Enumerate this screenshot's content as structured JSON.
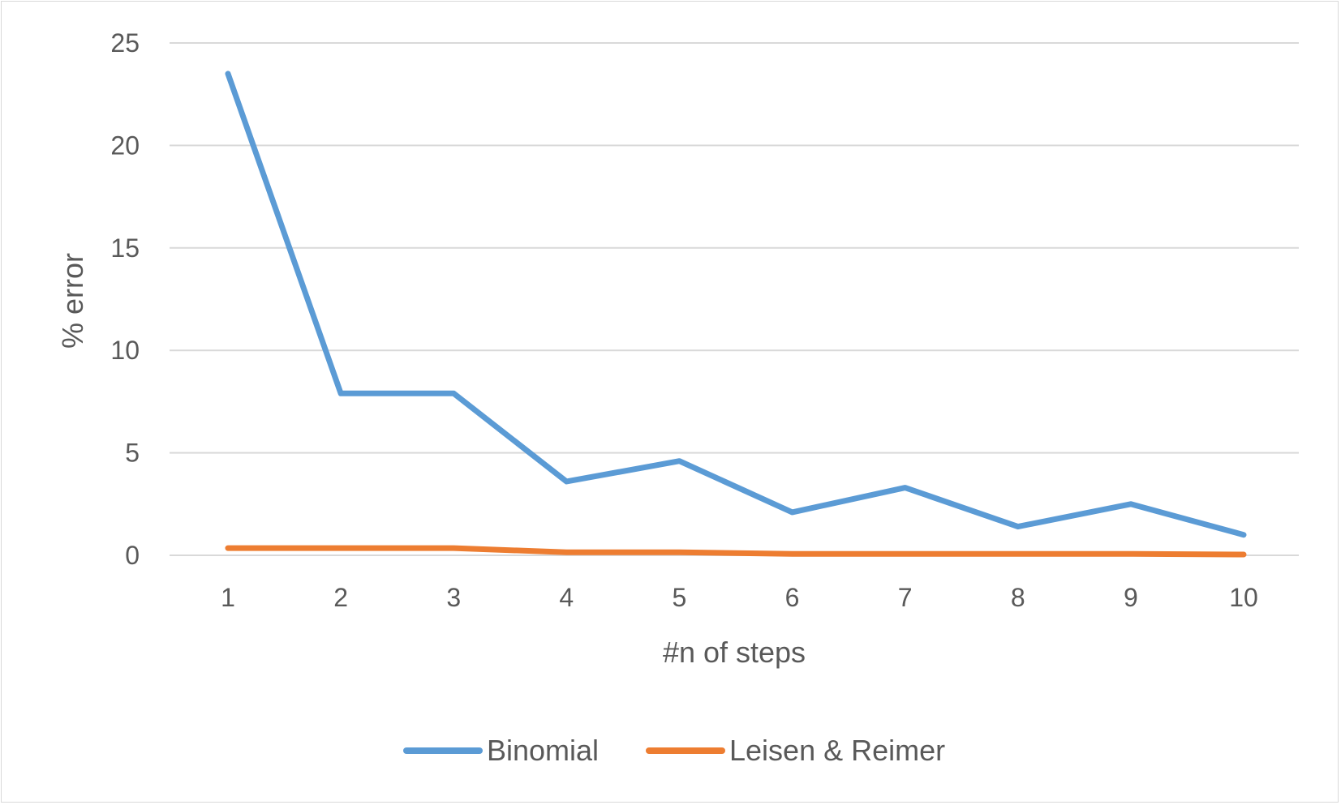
{
  "chart_data": {
    "type": "line",
    "title": "",
    "xlabel": "#n of steps",
    "ylabel": "% error",
    "x": [
      1,
      2,
      3,
      4,
      5,
      6,
      7,
      8,
      9,
      10
    ],
    "ylim": [
      0,
      25
    ],
    "yticks": [
      0,
      5,
      10,
      15,
      20,
      25
    ],
    "grid": true,
    "legend_position": "bottom",
    "series": [
      {
        "name": "Binomial",
        "color": "#5b9bd5",
        "values": [
          23.5,
          7.9,
          7.9,
          3.6,
          4.6,
          2.1,
          3.3,
          1.4,
          2.5,
          1.0
        ]
      },
      {
        "name": "Leisen & Reimer",
        "color": "#ed7d31",
        "values": [
          0.35,
          0.35,
          0.35,
          0.15,
          0.15,
          0.07,
          0.07,
          0.07,
          0.07,
          0.04
        ]
      }
    ]
  }
}
